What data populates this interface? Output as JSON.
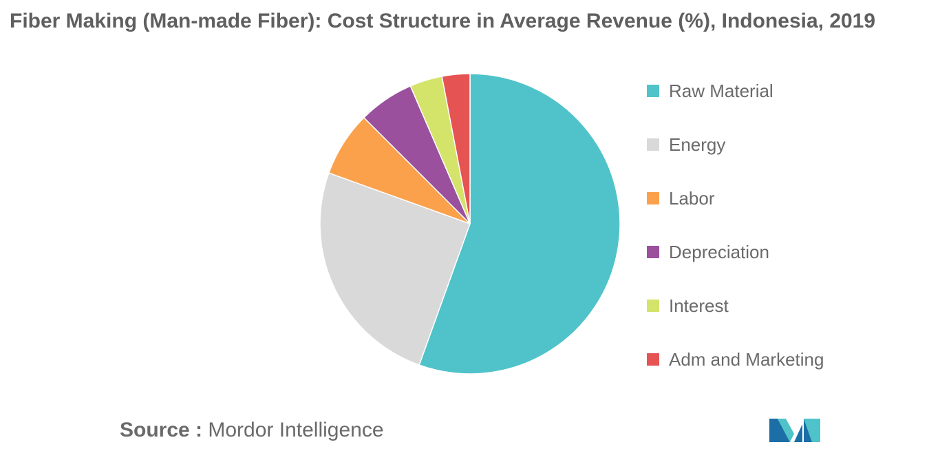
{
  "title": "Fiber Making (Man-made Fiber): Cost Structure in Average Revenue (%), Indonesia, 2019",
  "source": {
    "label": "Source :",
    "name": "Mordor Intelligence"
  },
  "chart_data": {
    "type": "pie",
    "title": "Fiber Making (Man-made Fiber): Cost Structure in Average Revenue (%), Indonesia, 2019",
    "legend_position": "right",
    "start_angle_deg": 0,
    "direction": "clockwise",
    "slices": [
      {
        "label": "Raw Material",
        "value": 55.5,
        "color": "#4fc3c9"
      },
      {
        "label": "Energy",
        "value": 25.0,
        "color": "#d9d9d9"
      },
      {
        "label": "Labor",
        "value": 7.0,
        "color": "#fba14b"
      },
      {
        "label": "Depreciation",
        "value": 6.0,
        "color": "#9b509e"
      },
      {
        "label": "Interest",
        "value": 3.5,
        "color": "#d4e36a"
      },
      {
        "label": "Adm and Marketing",
        "value": 3.0,
        "color": "#e65353"
      }
    ]
  },
  "logo": {
    "icon": "mordor-intelligence-logo",
    "colors": [
      "#1b6fa6",
      "#4fc3c9"
    ]
  }
}
